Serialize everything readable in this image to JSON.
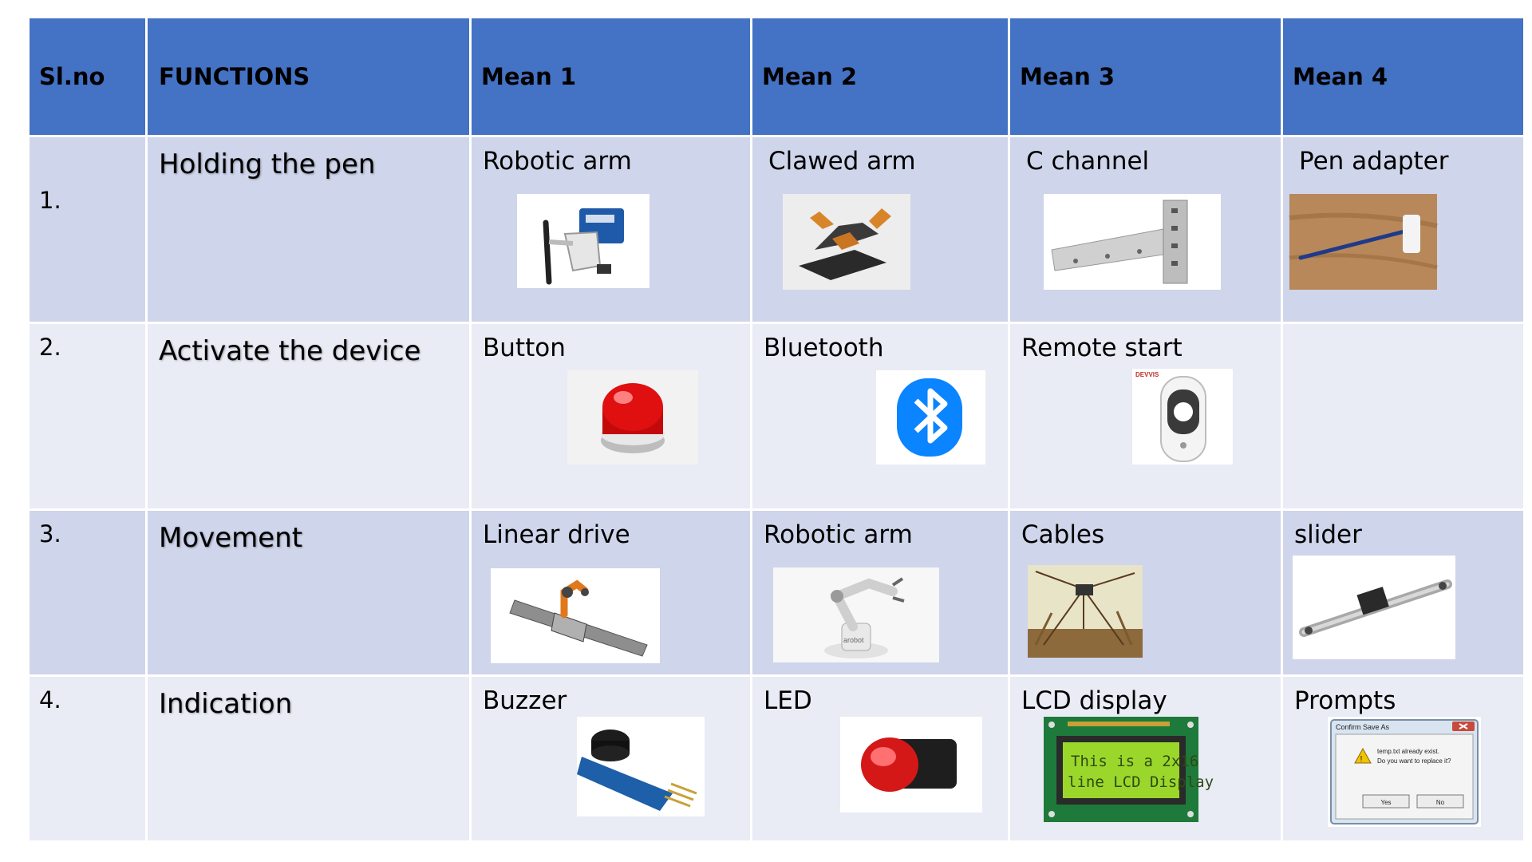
{
  "table": {
    "headers": [
      "Sl.no",
      "FUNCTIONS",
      "Mean 1",
      "Mean 2",
      "Mean 3",
      "Mean 4"
    ],
    "rows": [
      {
        "slno": "1.",
        "function": "Holding the pen",
        "means": [
          {
            "label": "Robotic arm",
            "icon": "robotic-gripper-icon"
          },
          {
            "label": "Clawed arm",
            "icon": "clawed-arm-icon"
          },
          {
            "label": "C channel",
            "icon": "c-channel-icon"
          },
          {
            "label": "Pen adapter",
            "icon": "pen-adapter-icon"
          }
        ]
      },
      {
        "slno": "2.",
        "function": "Activate the device",
        "means": [
          {
            "label": "Button",
            "icon": "red-button-icon"
          },
          {
            "label": "Bluetooth",
            "icon": "bluetooth-icon"
          },
          {
            "label": "Remote start",
            "icon": "remote-control-icon",
            "brand_text": "DEVVIS"
          },
          {
            "label": "",
            "icon": ""
          }
        ]
      },
      {
        "slno": "3.",
        "function": "Movement",
        "means": [
          {
            "label": "Linear drive",
            "icon": "linear-drive-icon"
          },
          {
            "label": "Robotic arm",
            "icon": "robot-arm-icon",
            "brand_text": "arobot"
          },
          {
            "label": "Cables",
            "icon": "cable-robot-icon"
          },
          {
            "label": "slider",
            "icon": "slider-rail-icon"
          }
        ]
      },
      {
        "slno": "4.",
        "function": "Indication",
        "means": [
          {
            "label": "Buzzer",
            "icon": "buzzer-module-icon"
          },
          {
            "label": "LED",
            "icon": "red-led-icon"
          },
          {
            "label": "LCD display",
            "icon": "lcd-display-icon",
            "screen_lines": [
              "This is a 2x16",
              "line LCD Display"
            ]
          },
          {
            "label": "Prompts",
            "icon": "dialog-prompt-icon",
            "dialog": {
              "title": "Confirm Save As",
              "message_1": "temp.txt already exist.",
              "message_2": "Do you want to replace it?",
              "yes": "Yes",
              "no": "No"
            }
          }
        ]
      }
    ]
  },
  "colors": {
    "header_bg": "#4472C4",
    "row_dark": "#CFD5EA",
    "row_light": "#E9EBF5",
    "bluetooth": "#0A84FF",
    "button_red": "#E01010",
    "lcd_green": "#9BD72B"
  }
}
